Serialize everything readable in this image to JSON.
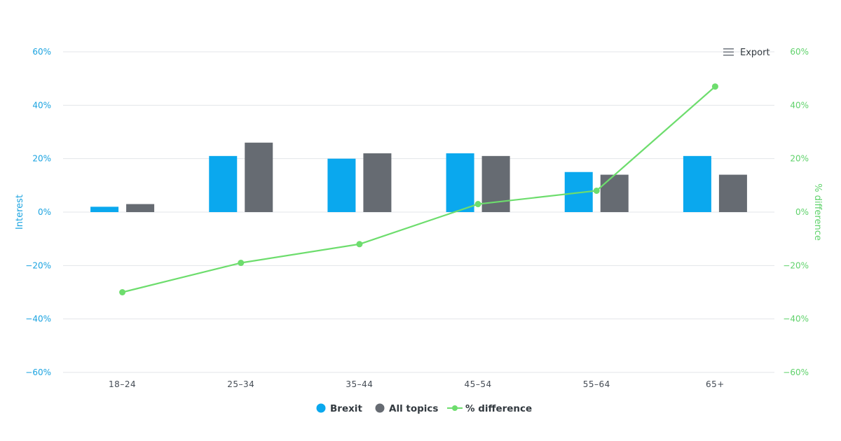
{
  "colors": {
    "brexit": "#0aa8ee",
    "all_topics": "#666b72",
    "difference": "#6ddd6d",
    "grid": "#e3e6ea",
    "left_axis": "#1aa3e0",
    "right_axis": "#5fd26b"
  },
  "export": {
    "label": "Export",
    "icon": "hamburger-menu-icon"
  },
  "legend": {
    "position": "bottom-center",
    "items": [
      {
        "label": "Brexit",
        "marker": "circle"
      },
      {
        "label": "All topics",
        "marker": "circle"
      },
      {
        "label": "% difference",
        "marker": "line-with-circle"
      }
    ]
  },
  "chart_data": {
    "type": "bar",
    "categories": [
      "18–24",
      "25–34",
      "35–44",
      "45–54",
      "55–64",
      "65+"
    ],
    "series": [
      {
        "name": "Brexit",
        "type": "bar",
        "axis": "left",
        "values": [
          2,
          21,
          20,
          22,
          15,
          21
        ]
      },
      {
        "name": "All topics",
        "type": "bar",
        "axis": "left",
        "values": [
          3,
          26,
          22,
          21,
          14,
          14
        ]
      },
      {
        "name": "% difference",
        "type": "line",
        "axis": "right",
        "values": [
          -30,
          -19,
          -12,
          3,
          8,
          47
        ]
      }
    ],
    "y_left": {
      "label": "Interest",
      "ylim": [
        -60,
        60
      ],
      "ticks": [
        60,
        40,
        20,
        0,
        -20,
        -40,
        -60
      ],
      "tick_labels": [
        "60%",
        "40%",
        "20%",
        "0%",
        "−20%",
        "−40%",
        "−60%"
      ]
    },
    "y_right": {
      "label": "% difference",
      "ylim": [
        -60,
        60
      ],
      "ticks": [
        60,
        40,
        20,
        0,
        -20,
        -40,
        -60
      ],
      "tick_labels": [
        "60%",
        "40%",
        "20%",
        "0%",
        "−20%",
        "−40%",
        "−60%"
      ]
    },
    "grid": true
  }
}
